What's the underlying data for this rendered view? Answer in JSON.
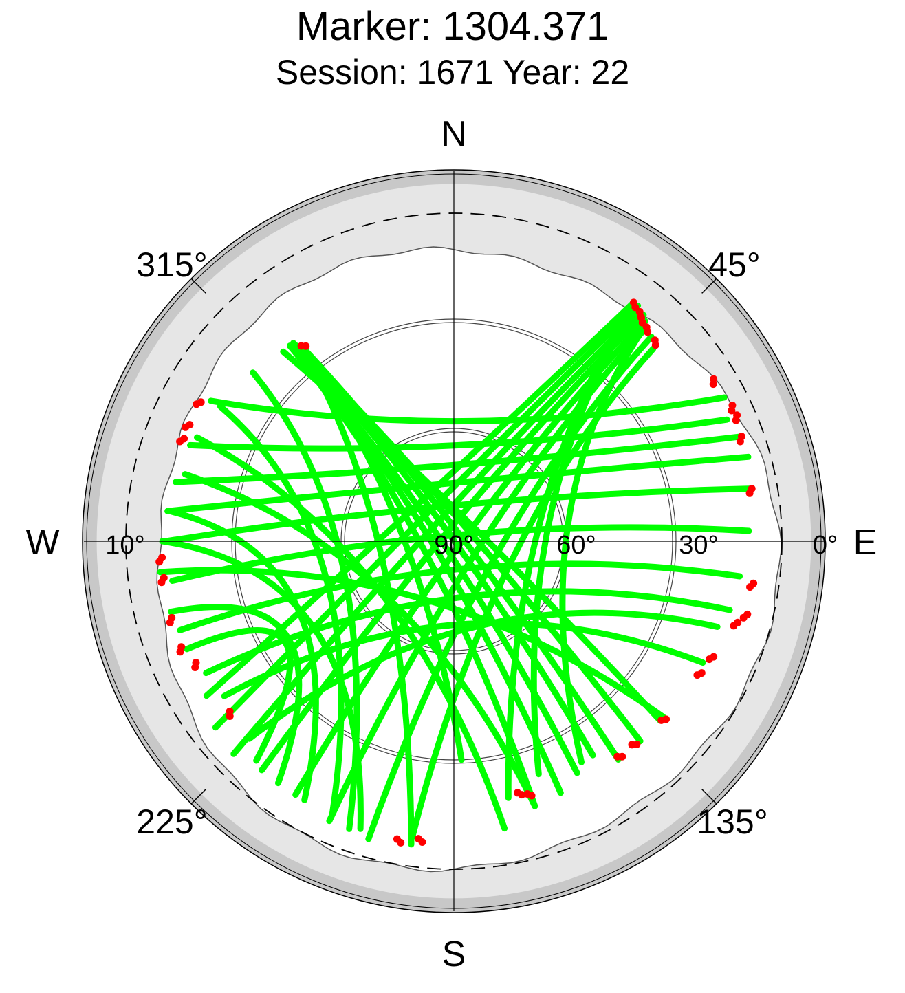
{
  "title": "Marker: 1304.371",
  "subtitle": "Session: 1671 Year: 22",
  "chart_data": {
    "type": "scatter",
    "projection": "polar sky plot (azimuth clockwise from North, elevation 90° at centre to 0° at rim)",
    "title": "Marker: 1304.371",
    "subtitle": "Session: 1671 Year: 22",
    "directions": {
      "north": "N",
      "east": "E",
      "south": "S",
      "west": "W"
    },
    "azimuth_labels": [
      "45°",
      "135°",
      "225°",
      "315°"
    ],
    "elevation_labels": [
      "90°",
      "60°",
      "30°",
      "0°",
      "10°"
    ],
    "elevation_rings": [
      60,
      30,
      0
    ],
    "cutoff_elevation_deg": 10,
    "colors": {
      "tracks": "#00ff00",
      "low_points": "#ff0000",
      "mask_outer": "#c8c8c8",
      "mask_inner": "#e6e6e6",
      "background": "#ffffff"
    },
    "series": [
      {
        "color": "#00ff00",
        "tracks": [
          {
            "from_az": 37,
            "from_el": 8,
            "to_az": 238,
            "to_el": 10
          },
          {
            "from_az": 38,
            "from_el": 8,
            "to_az": 232,
            "to_el": 7
          },
          {
            "from_az": 39,
            "from_el": 9,
            "to_az": 226,
            "to_el": 6
          },
          {
            "from_az": 40,
            "from_el": 9,
            "to_az": 220,
            "to_el": 8
          },
          {
            "from_az": 41,
            "from_el": 10,
            "to_az": 212,
            "to_el": 8
          },
          {
            "from_az": 42,
            "from_el": 11,
            "to_az": 204,
            "to_el": 6
          },
          {
            "from_az": 44,
            "from_el": 12,
            "to_az": 196,
            "to_el": 5
          },
          {
            "from_az": 46,
            "from_el": 14,
            "to_az": 188,
            "to_el": 8
          },
          {
            "from_az": 37,
            "from_el": 10,
            "to_az": 168,
            "to_el": 18
          },
          {
            "from_az": 38,
            "from_el": 12,
            "to_az": 160,
            "to_el": 22
          },
          {
            "from_az": 42,
            "from_el": 14,
            "to_az": 150,
            "to_el": 20
          },
          {
            "from_az": 320,
            "from_el": 20,
            "to_az": 163,
            "to_el": 14
          },
          {
            "from_az": 320,
            "from_el": 20,
            "to_az": 157,
            "to_el": 15
          },
          {
            "from_az": 320,
            "from_el": 20,
            "to_az": 152,
            "to_el": 18
          },
          {
            "from_az": 321,
            "from_el": 21,
            "to_az": 147,
            "to_el": 20
          },
          {
            "from_az": 322,
            "from_el": 22,
            "to_az": 143,
            "to_el": 15
          },
          {
            "from_az": 321,
            "from_el": 20,
            "to_az": 137,
            "to_el": 15
          },
          {
            "from_az": 318,
            "from_el": 20,
            "to_az": 131,
            "to_el": 15
          },
          {
            "from_az": 322,
            "from_el": 22,
            "to_az": 178,
            "to_el": 30
          },
          {
            "from_az": 322,
            "from_el": 22,
            "to_az": 188,
            "to_el": 6
          },
          {
            "from_az": 310,
            "from_el": 18,
            "to_az": 200,
            "to_el": 6
          },
          {
            "from_az": 300,
            "from_el": 16,
            "to_az": 204,
            "to_el": 8
          },
          {
            "from_az": 292,
            "from_el": 14,
            "to_az": 170,
            "to_el": 10
          },
          {
            "from_az": 284,
            "from_el": 14,
            "to_az": 163,
            "to_el": 14
          },
          {
            "from_az": 276,
            "from_el": 12,
            "to_az": 210,
            "to_el": 8
          },
          {
            "from_az": 270,
            "from_el": 10,
            "to_az": 198,
            "to_el": 7
          },
          {
            "from_az": 264,
            "from_el": 9,
            "to_az": 130,
            "to_el": 15
          },
          {
            "from_az": 256,
            "from_el": 10,
            "to_az": 216,
            "to_el": 8
          },
          {
            "from_az": 248,
            "from_el": 11,
            "to_az": 222,
            "to_el": 9
          },
          {
            "from_az": 62,
            "from_el": 6,
            "to_az": 300,
            "to_el": 13
          },
          {
            "from_az": 66,
            "from_el": 8,
            "to_az": 290,
            "to_el": 13
          },
          {
            "from_az": 70,
            "from_el": 6,
            "to_az": 282,
            "to_el": 12
          },
          {
            "from_az": 74,
            "from_el": 6,
            "to_az": 276,
            "to_el": 11
          },
          {
            "from_az": 80,
            "from_el": 7,
            "to_az": 270,
            "to_el": 11
          },
          {
            "from_az": 88,
            "from_el": 9,
            "to_az": 262,
            "to_el": 12
          },
          {
            "from_az": 97,
            "from_el": 11,
            "to_az": 252,
            "to_el": 11
          },
          {
            "from_az": 104,
            "from_el": 12,
            "to_az": 242,
            "to_el": 13
          },
          {
            "from_az": 108,
            "from_el": 14,
            "to_az": 226,
            "to_el": 12
          },
          {
            "from_az": 116,
            "from_el": 14,
            "to_az": 236,
            "to_el": 14
          }
        ]
      },
      {
        "color": "#ff0000",
        "clusters": [
          {
            "az": 37,
            "el": 8
          },
          {
            "az": 39,
            "el": 9
          },
          {
            "az": 40,
            "el": 10
          },
          {
            "az": 42,
            "el": 11
          },
          {
            "az": 45,
            "el": 12
          },
          {
            "az": 58,
            "el": 6
          },
          {
            "az": 64,
            "el": 5
          },
          {
            "az": 66,
            "el": 5
          },
          {
            "az": 70,
            "el": 6
          },
          {
            "az": 80,
            "el": 7
          },
          {
            "az": 98,
            "el": 7
          },
          {
            "az": 104,
            "el": 7
          },
          {
            "az": 106,
            "el": 9
          },
          {
            "az": 114,
            "el": 12
          },
          {
            "az": 118,
            "el": 13
          },
          {
            "az": 130,
            "el": 14
          },
          {
            "az": 138,
            "el": 15
          },
          {
            "az": 142,
            "el": 15
          },
          {
            "az": 163,
            "el": 17
          },
          {
            "az": 165,
            "el": 18
          },
          {
            "az": 186,
            "el": 7
          },
          {
            "az": 190,
            "el": 6
          },
          {
            "az": 232,
            "el": 12
          },
          {
            "az": 244,
            "el": 11
          },
          {
            "az": 248,
            "el": 9
          },
          {
            "az": 254,
            "el": 9
          },
          {
            "az": 262,
            "el": 9
          },
          {
            "az": 266,
            "el": 9
          },
          {
            "az": 290,
            "el": 10
          },
          {
            "az": 293,
            "el": 10
          },
          {
            "az": 298,
            "el": 10
          },
          {
            "az": 322,
            "el": 22
          }
        ]
      }
    ]
  }
}
